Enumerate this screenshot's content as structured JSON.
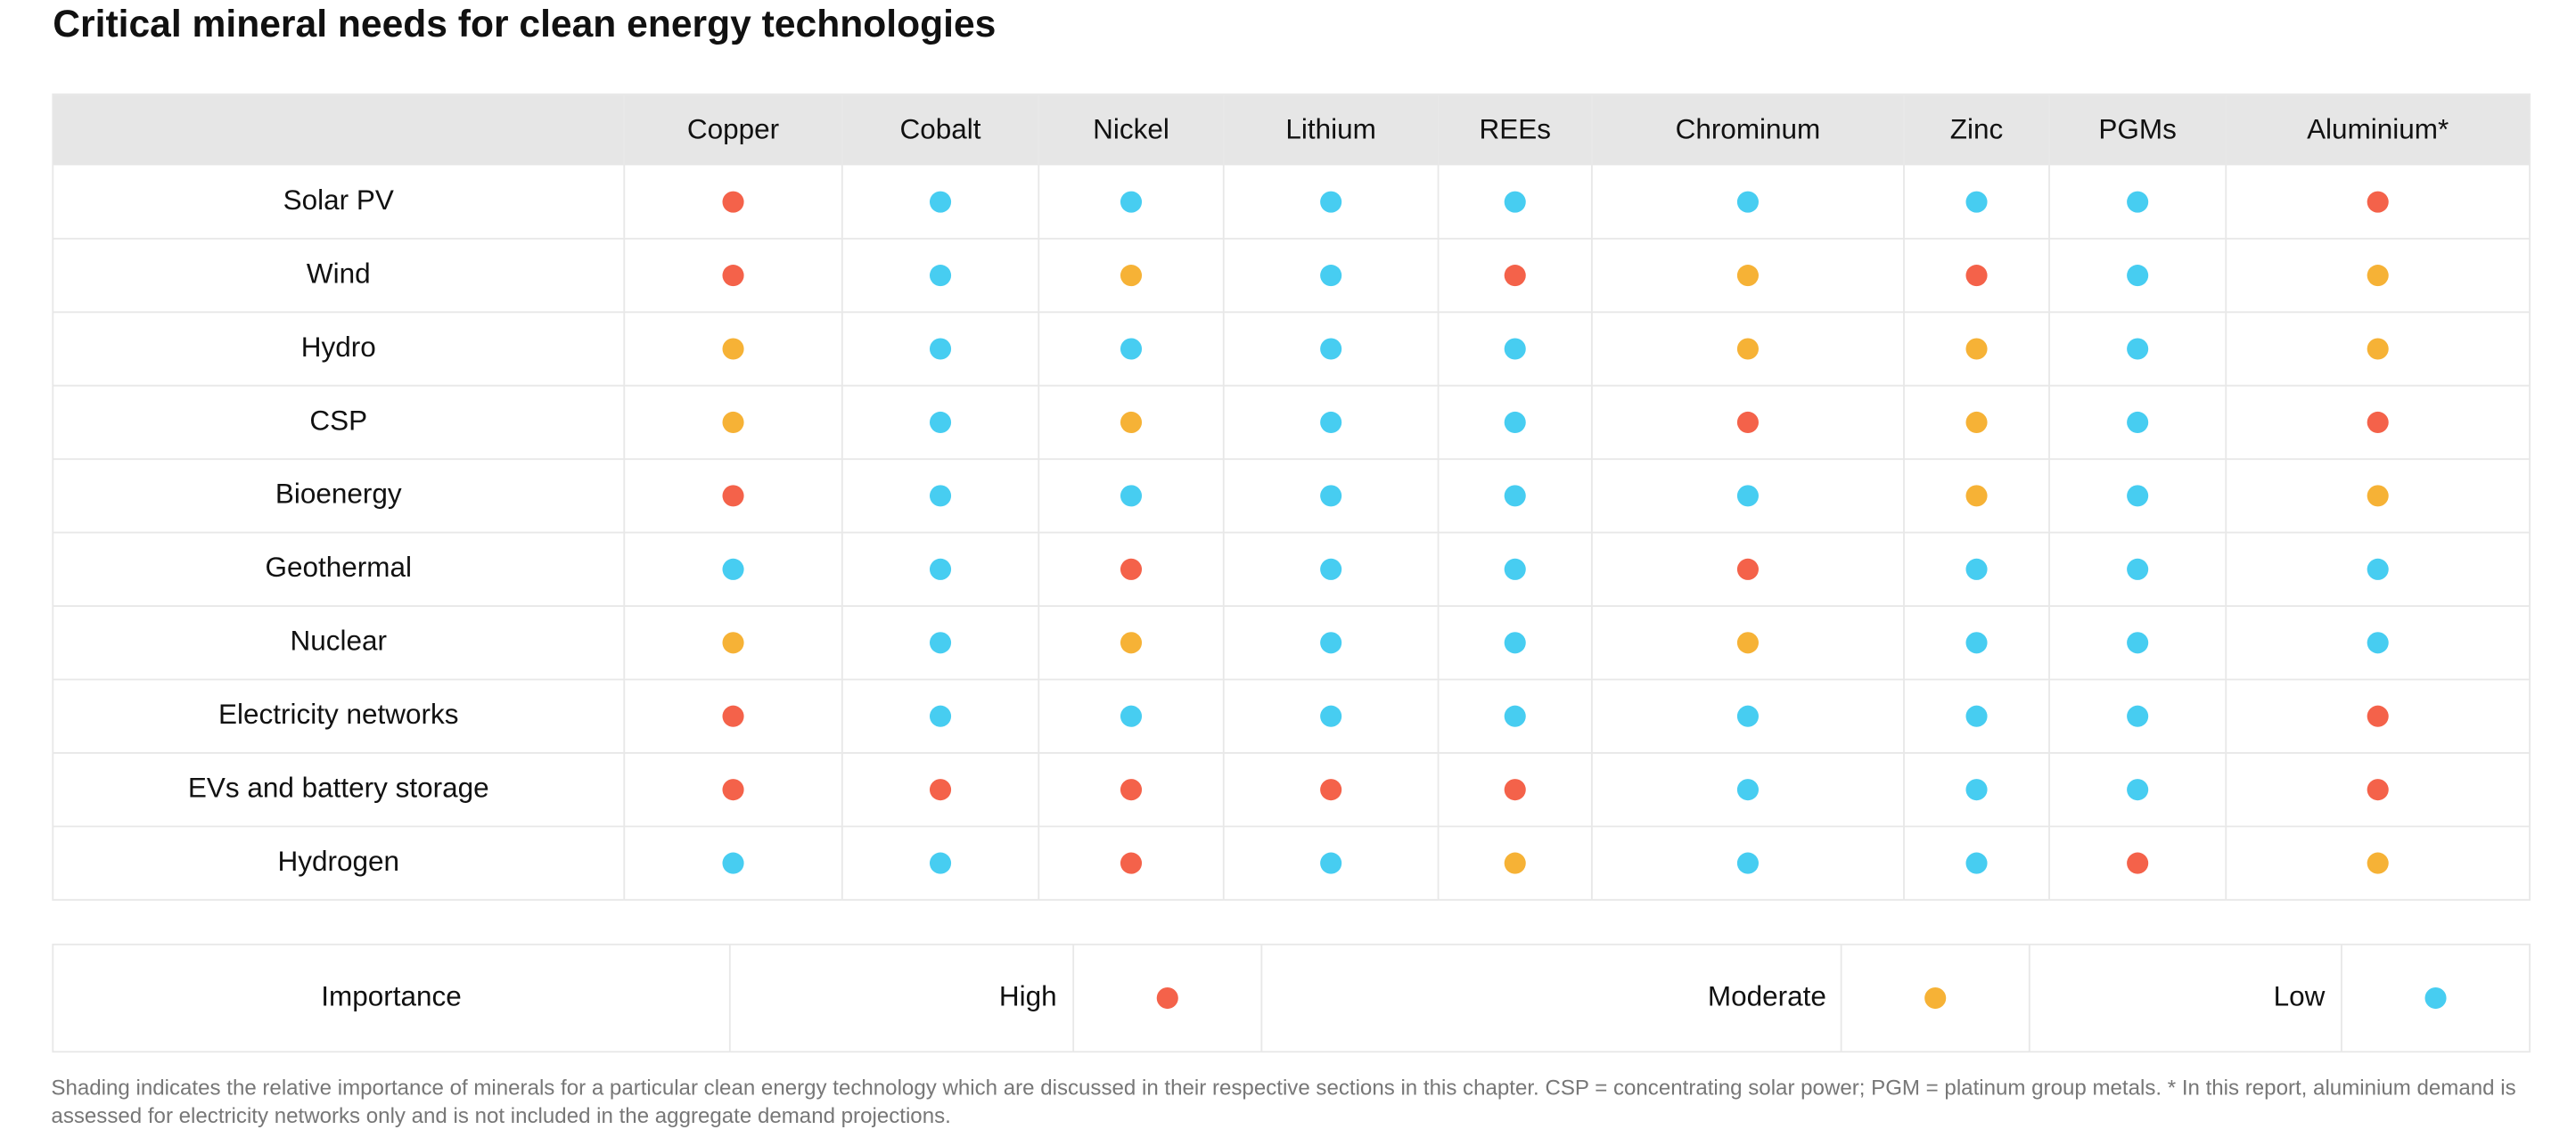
{
  "title": "Critical mineral needs for clean energy technologies",
  "table": {
    "columns": [
      "Copper",
      "Cobalt",
      "Nickel",
      "Lithium",
      "REEs",
      "Chrominum",
      "Zinc",
      "PGMs",
      "Aluminium*"
    ],
    "rows": [
      {
        "label": "Solar PV",
        "cells": [
          "High",
          "Low",
          "Low",
          "Low",
          "Low",
          "Low",
          "Low",
          "Low",
          "High"
        ]
      },
      {
        "label": "Wind",
        "cells": [
          "High",
          "Low",
          "Moderate",
          "Low",
          "High",
          "Moderate",
          "High",
          "Low",
          "Moderate"
        ]
      },
      {
        "label": "Hydro",
        "cells": [
          "Moderate",
          "Low",
          "Low",
          "Low",
          "Low",
          "Moderate",
          "Moderate",
          "Low",
          "Moderate"
        ]
      },
      {
        "label": "CSP",
        "cells": [
          "Moderate",
          "Low",
          "Moderate",
          "Low",
          "Low",
          "High",
          "Moderate",
          "Low",
          "High"
        ]
      },
      {
        "label": "Bioenergy",
        "cells": [
          "High",
          "Low",
          "Low",
          "Low",
          "Low",
          "Low",
          "Moderate",
          "Low",
          "Moderate"
        ]
      },
      {
        "label": "Geothermal",
        "cells": [
          "Low",
          "Low",
          "High",
          "Low",
          "Low",
          "High",
          "Low",
          "Low",
          "Low"
        ]
      },
      {
        "label": "Nuclear",
        "cells": [
          "Moderate",
          "Low",
          "Moderate",
          "Low",
          "Low",
          "Moderate",
          "Low",
          "Low",
          "Low"
        ]
      },
      {
        "label": "Electricity networks",
        "cells": [
          "High",
          "Low",
          "Low",
          "Low",
          "Low",
          "Low",
          "Low",
          "Low",
          "High"
        ]
      },
      {
        "label": "EVs and battery storage",
        "cells": [
          "High",
          "High",
          "High",
          "High",
          "High",
          "Low",
          "Low",
          "Low",
          "High"
        ]
      },
      {
        "label": "Hydrogen",
        "cells": [
          "Low",
          "Low",
          "High",
          "Low",
          "Moderate",
          "Low",
          "Low",
          "High",
          "Moderate"
        ]
      }
    ]
  },
  "legend": {
    "title": "Importance",
    "items": [
      {
        "label": "High",
        "color": "#f4624a"
      },
      {
        "label": "Moderate",
        "color": "#f6b236"
      },
      {
        "label": "Low",
        "color": "#47cdf1"
      }
    ]
  },
  "footnote": "Shading indicates the relative importance of minerals for a particular clean energy technology which are discussed in their respective sections in this chapter. CSP = concentrating solar power; PGM = platinum group metals. * In this report, aluminium demand is assessed for electricity networks only and is not included in the aggregate demand projections."
}
